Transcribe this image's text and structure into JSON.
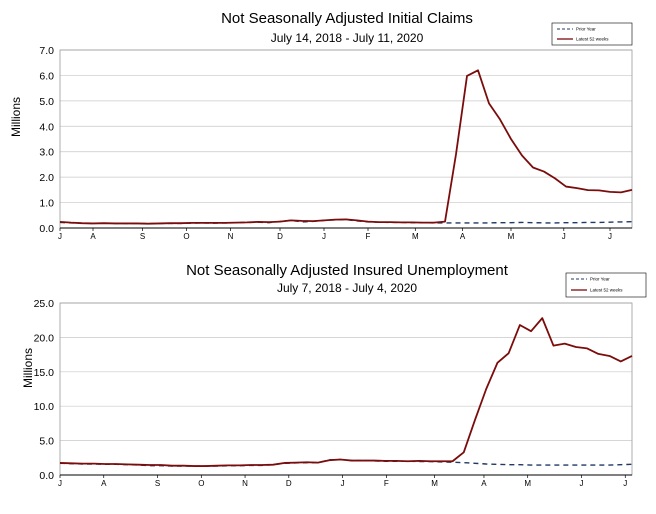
{
  "chart_data": [
    {
      "type": "line",
      "title": "Not Seasonally Adjusted Initial Claims",
      "subtitle": "July 14, 2018  - July 11, 2020",
      "ylabel": "Millions",
      "xlabel": "",
      "ylim": [
        0,
        7
      ],
      "yticks": [
        "0.0",
        "1.0",
        "2.0",
        "3.0",
        "4.0",
        "5.0",
        "6.0",
        "7.0"
      ],
      "grid": true,
      "legend_position": "top-right",
      "month_labels": [
        "J",
        "A",
        "S",
        "O",
        "N",
        "D",
        "J",
        "F",
        "M",
        "A",
        "M",
        "J",
        "J"
      ],
      "month_positions": [
        0,
        3,
        7.5,
        11.5,
        15.5,
        20,
        24,
        28,
        32.3,
        36.6,
        41,
        45.8,
        50
      ],
      "x": [
        0,
        1,
        2,
        3,
        4,
        5,
        6,
        7,
        8,
        9,
        10,
        11,
        12,
        13,
        14,
        15,
        16,
        17,
        18,
        19,
        20,
        21,
        22,
        23,
        24,
        25,
        26,
        27,
        28,
        29,
        30,
        31,
        32,
        33,
        34,
        35,
        36,
        37,
        38,
        39,
        40,
        41,
        42,
        43,
        44,
        45,
        46,
        47,
        48,
        49,
        50,
        51,
        52
      ],
      "series": [
        {
          "name": "Prior Year",
          "color": "#1F3864",
          "style": "dashed",
          "values": [
            0.22,
            0.2,
            0.19,
            0.18,
            0.19,
            0.18,
            0.18,
            0.18,
            0.17,
            0.18,
            0.18,
            0.18,
            0.19,
            0.2,
            0.19,
            0.2,
            0.21,
            0.22,
            0.23,
            0.21,
            0.26,
            0.3,
            0.24,
            0.26,
            0.3,
            0.32,
            0.33,
            0.28,
            0.24,
            0.23,
            0.22,
            0.22,
            0.21,
            0.21,
            0.2,
            0.2,
            0.2,
            0.2,
            0.2,
            0.2,
            0.21,
            0.21,
            0.22,
            0.21,
            0.2,
            0.2,
            0.21,
            0.21,
            0.22,
            0.22,
            0.23,
            0.24,
            0.25
          ]
        },
        {
          "name": "Latest 52 weeks",
          "color": "#7B0C0C",
          "style": "solid",
          "values": [
            0.24,
            0.21,
            0.19,
            0.18,
            0.19,
            0.18,
            0.18,
            0.18,
            0.17,
            0.18,
            0.19,
            0.19,
            0.2,
            0.2,
            0.2,
            0.2,
            0.21,
            0.22,
            0.24,
            0.23,
            0.25,
            0.3,
            0.28,
            0.27,
            0.3,
            0.33,
            0.34,
            0.3,
            0.25,
            0.23,
            0.23,
            0.22,
            0.22,
            0.21,
            0.21,
            0.25,
            2.9,
            5.98,
            6.2,
            4.9,
            4.27,
            3.5,
            2.85,
            2.38,
            2.22,
            1.95,
            1.63,
            1.57,
            1.49,
            1.48,
            1.42,
            1.4,
            1.5
          ]
        }
      ]
    },
    {
      "type": "line",
      "title": "Not Seasonally Adjusted Insured Unemployment",
      "subtitle": "July 7, 2018 - July 4, 2020",
      "ylabel": "Millions",
      "xlabel": "",
      "ylim": [
        0,
        25
      ],
      "yticks": [
        "0.0",
        "5.0",
        "10.0",
        "15.0",
        "20.0",
        "25.0"
      ],
      "grid": true,
      "legend_position": "top-right",
      "month_labels": [
        "J",
        "A",
        "S",
        "O",
        "N",
        "D",
        "J",
        "F",
        "M",
        "A",
        "M",
        "J",
        "J"
      ],
      "month_positions": [
        0,
        3.9,
        8.7,
        12.6,
        16.5,
        20.4,
        25.2,
        29.1,
        33.4,
        37.8,
        41.7,
        46.5,
        50.4
      ],
      "x": [
        0,
        1,
        2,
        3,
        4,
        5,
        6,
        7,
        8,
        9,
        10,
        11,
        12,
        13,
        14,
        15,
        16,
        17,
        18,
        19,
        20,
        21,
        22,
        23,
        24,
        25,
        26,
        27,
        28,
        29,
        30,
        31,
        32,
        33,
        34,
        35,
        36,
        37,
        38,
        39,
        40,
        41,
        42,
        43,
        44,
        45,
        46,
        47,
        48,
        49,
        50,
        51
      ],
      "series": [
        {
          "name": "Prior Year",
          "color": "#1F3864",
          "style": "dashed",
          "values": [
            1.7,
            1.65,
            1.6,
            1.6,
            1.55,
            1.55,
            1.5,
            1.45,
            1.35,
            1.35,
            1.3,
            1.3,
            1.3,
            1.3,
            1.3,
            1.35,
            1.35,
            1.4,
            1.4,
            1.5,
            1.7,
            1.75,
            1.8,
            1.8,
            2.2,
            2.25,
            2.1,
            2.1,
            2.05,
            2.0,
            2.0,
            2.0,
            1.95,
            1.95,
            1.9,
            1.85,
            1.8,
            1.7,
            1.6,
            1.55,
            1.5,
            1.5,
            1.45,
            1.45,
            1.45,
            1.45,
            1.45,
            1.45,
            1.45,
            1.45,
            1.5,
            1.55
          ]
        },
        {
          "name": "Latest 52 weeks",
          "color": "#7B0C0C",
          "style": "solid",
          "values": [
            1.75,
            1.7,
            1.65,
            1.65,
            1.6,
            1.6,
            1.55,
            1.5,
            1.45,
            1.45,
            1.35,
            1.35,
            1.3,
            1.3,
            1.35,
            1.4,
            1.4,
            1.45,
            1.45,
            1.5,
            1.75,
            1.8,
            1.85,
            1.8,
            2.15,
            2.25,
            2.1,
            2.1,
            2.1,
            2.05,
            2.05,
            2.0,
            2.05,
            2.0,
            2.0,
            2.0,
            3.3,
            8.0,
            12.5,
            16.3,
            17.7,
            21.8,
            20.9,
            22.8,
            18.8,
            19.1,
            18.6,
            18.4,
            17.6,
            17.3,
            16.5,
            17.3
          ]
        }
      ]
    }
  ]
}
